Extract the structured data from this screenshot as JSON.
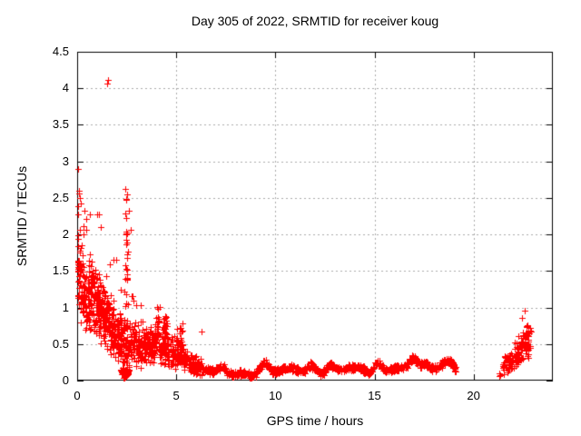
{
  "chart_data": {
    "type": "scatter",
    "title": "Day 305 of 2022, SRMTID for receiver koug",
    "xlabel": "GPS time / hours",
    "ylabel": "SRMTID / TECUs",
    "legend": "none",
    "axes": {
      "xlim": [
        0,
        24
      ],
      "ylim": [
        0,
        4.5
      ],
      "xticks": [
        0,
        5,
        10,
        15,
        20
      ],
      "xtick_labels": [
        "0",
        "5",
        "10",
        "15",
        "20"
      ],
      "yticks": [
        0,
        0.5,
        1,
        1.5,
        2,
        2.5,
        3,
        3.5,
        4,
        4.5
      ],
      "ytick_labels": [
        "0",
        "0.5",
        "1",
        "1.5",
        "2",
        "2.5",
        "3",
        "3.5",
        "4",
        "4.5"
      ],
      "grid": true,
      "grid_style": "dashed",
      "ticks_mirrored": true,
      "tick_direction": "in"
    },
    "style": {
      "marker": "plus",
      "marker_size": 7,
      "marker_color": "#ff0000",
      "grid_color": "#aaaaaa",
      "axis_color": "#000000",
      "text_color": "#000000",
      "background": "#ffffff"
    },
    "seed": 3052022,
    "notable_points": [
      [
        1.5,
        4.06
      ],
      [
        1.54,
        4.11
      ],
      [
        0.06,
        2.9
      ],
      [
        0.1,
        2.56
      ],
      [
        0.13,
        2.5
      ],
      [
        0.35,
        2.32
      ],
      [
        0.62,
        2.27
      ],
      [
        1.02,
        2.28
      ],
      [
        1.18,
        2.1
      ],
      [
        2.63,
        2.32
      ],
      [
        2.72,
        2.06
      ],
      [
        21.28,
        0.06
      ],
      [
        21.31,
        0.1
      ],
      [
        21.34,
        0.07
      ]
    ],
    "scatter_clusters": [
      {
        "x0": 0.02,
        "x1": 0.32,
        "n": 65,
        "c0": 1.45,
        "c1": 1.3,
        "spread": 0.8,
        "ymin": 0.08,
        "ymax": 2.6,
        "tail": 0.08,
        "tailmax": 2.88
      },
      {
        "x0": 0.3,
        "x1": 1.15,
        "n": 175,
        "c0": 1.2,
        "c1": 1.05,
        "spread": 0.55,
        "ymin": 0.1,
        "ymax": 2.3,
        "tail": 0.05,
        "tailmax": 2.3
      },
      {
        "x0": 1.1,
        "x1": 1.85,
        "n": 150,
        "c0": 1.0,
        "c1": 0.7,
        "spread": 0.5,
        "ymin": 0.06,
        "ymax": 2.05,
        "tail": 0.04,
        "tailmax": 2.05
      },
      {
        "x0": 1.85,
        "x1": 2.45,
        "n": 105,
        "c0": 0.62,
        "c1": 0.5,
        "spread": 0.42,
        "ymin": 0.05,
        "ymax": 1.65,
        "tail": 0.03,
        "tailmax": 1.8
      },
      {
        "x0": 2.42,
        "x1": 2.58,
        "n": 27,
        "c0": 1.85,
        "c1": 1.85,
        "spread": 0.95,
        "ymin": 0.98,
        "ymax": 2.82,
        "tail": 0,
        "tailmax": 0
      },
      {
        "x0": 2.2,
        "x1": 2.62,
        "n": 42,
        "c0": 0.12,
        "c1": 0.12,
        "spread": 0.1,
        "ymin": 0.03,
        "ymax": 0.3,
        "tail": 0,
        "tailmax": 0
      },
      {
        "x0": 2.45,
        "x1": 3.35,
        "n": 130,
        "c0": 0.52,
        "c1": 0.45,
        "spread": 0.36,
        "ymin": 0.05,
        "ymax": 1.15,
        "tail": 0.05,
        "tailmax": 1.45
      },
      {
        "x0": 3.35,
        "x1": 3.98,
        "n": 95,
        "c0": 0.45,
        "c1": 0.5,
        "spread": 0.3,
        "ymin": 0.05,
        "ymax": 1.0,
        "tail": 0.03,
        "tailmax": 1.05
      },
      {
        "x0": 3.95,
        "x1": 4.18,
        "n": 26,
        "c0": 0.68,
        "c1": 0.68,
        "spread": 0.38,
        "ymin": 0.18,
        "ymax": 1.1,
        "tail": 0,
        "tailmax": 0
      },
      {
        "x0": 4.33,
        "x1": 4.55,
        "n": 26,
        "c0": 0.7,
        "c1": 0.7,
        "spread": 0.38,
        "ymin": 0.2,
        "ymax": 1.13,
        "tail": 0,
        "tailmax": 0
      },
      {
        "x0": 4.15,
        "x1": 5.05,
        "n": 95,
        "c0": 0.42,
        "c1": 0.4,
        "spread": 0.28,
        "ymin": 0.07,
        "ymax": 0.92,
        "tail": 0.02,
        "tailmax": 1.0
      },
      {
        "x0": 5.02,
        "x1": 5.32,
        "n": 32,
        "c0": 0.55,
        "c1": 0.5,
        "spread": 0.32,
        "ymin": 0.12,
        "ymax": 1.05,
        "tail": 0,
        "tailmax": 0
      },
      {
        "x0": 5.05,
        "x1": 6.3,
        "n": 135,
        "c0": 0.36,
        "c1": 0.17,
        "spread": 0.17,
        "ymin": 0.04,
        "ymax": 0.72,
        "tail": 0.02,
        "tailmax": 0.8
      },
      {
        "x0": 21.45,
        "x1": 22.28,
        "n": 70,
        "c0": 0.2,
        "c1": 0.32,
        "spread": 0.16,
        "ymin": 0.05,
        "ymax": 0.55,
        "tail": 0.02,
        "tailmax": 0.6
      },
      {
        "x0": 22.2,
        "x1": 22.88,
        "n": 85,
        "c0": 0.42,
        "c1": 0.58,
        "spread": 0.3,
        "ymin": 0.1,
        "ymax": 1.18,
        "tail": 0.05,
        "tailmax": 1.18
      }
    ],
    "quiet_band": {
      "x0": 6.3,
      "x1": 19.15,
      "n": 980,
      "base": 0.13,
      "wiggle_amp": 0.035,
      "wiggle_period": 1.15,
      "spread": 0.055,
      "ymin": 0.03,
      "ymax": 0.6,
      "bumps": [
        {
          "t": 6.6,
          "a": 0.05,
          "w": 0.2
        },
        {
          "t": 7.4,
          "a": 0.03,
          "w": 0.25
        },
        {
          "t": 8.4,
          "a": -0.055,
          "w": 0.55
        },
        {
          "t": 9.45,
          "a": 0.09,
          "w": 0.28
        },
        {
          "t": 10.2,
          "a": 0.03,
          "w": 0.25
        },
        {
          "t": 11.0,
          "a": 0.05,
          "w": 0.3
        },
        {
          "t": 11.8,
          "a": 0.04,
          "w": 0.3
        },
        {
          "t": 12.7,
          "a": 0.06,
          "w": 0.3
        },
        {
          "t": 13.6,
          "a": 0.07,
          "w": 0.32
        },
        {
          "t": 14.4,
          "a": 0.04,
          "w": 0.25
        },
        {
          "t": 15.15,
          "a": 0.08,
          "w": 0.28
        },
        {
          "t": 15.95,
          "a": 0.06,
          "w": 0.28
        },
        {
          "t": 16.95,
          "a": 0.21,
          "w": 0.3
        },
        {
          "t": 17.55,
          "a": 0.07,
          "w": 0.25
        },
        {
          "t": 18.15,
          "a": 0.08,
          "w": 0.3
        },
        {
          "t": 18.6,
          "a": 0.1,
          "w": 0.25
        },
        {
          "t": 18.95,
          "a": 0.09,
          "w": 0.18
        }
      ]
    }
  }
}
